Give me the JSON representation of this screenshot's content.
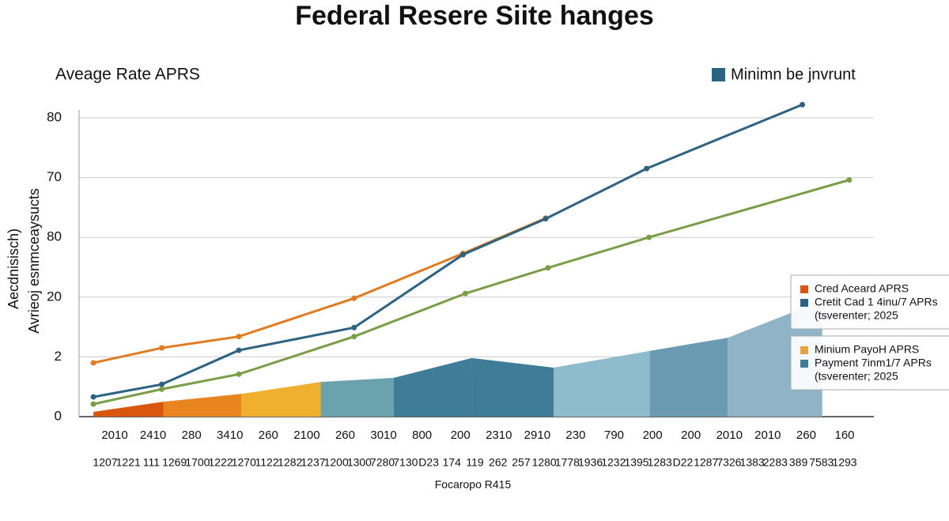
{
  "chart_data": {
    "type": "line",
    "title": "Federal Resere Siite hanges",
    "subtitle": "Aveage Rate APRS",
    "y_label": [
      "Aecdnisisch)",
      "Avrieoj esnmceaysucts"
    ],
    "x_label": "Focaropo R415",
    "x_labels_top": [
      "2010",
      "2410",
      "280",
      "3410",
      "260",
      "2100",
      "260",
      "3010",
      "800",
      "200",
      "2310",
      "2910",
      "230",
      "790",
      "200",
      "200",
      "2010",
      "2010",
      "260",
      "160"
    ],
    "x_labels_bottom": [
      "1207",
      "1221",
      "111",
      "1269",
      "1700",
      "1222",
      "1270",
      "1122",
      "1282",
      "1237",
      "1200",
      "1300",
      "7280",
      "7130",
      "D23",
      "174",
      "119",
      "262",
      "257",
      "1280",
      "1778",
      "1936",
      "1232",
      "1395",
      "1283",
      "D22",
      "1287",
      "7326",
      "1383",
      "2283",
      "389",
      "7583",
      "1293"
    ],
    "xlim": [
      0,
      100
    ],
    "ylim": [
      0,
      5
    ],
    "yticks": [
      {
        "value": 0,
        "label": "0"
      },
      {
        "value": 1,
        "label": "2"
      },
      {
        "value": 2,
        "label": "20"
      },
      {
        "value": 3,
        "label": "80"
      },
      {
        "value": 4,
        "label": "70"
      },
      {
        "value": 5,
        "label": "80"
      }
    ],
    "grid": true,
    "legend_top": {
      "label": "Minimn be jnvrunt",
      "color": "#2c6383"
    },
    "legend_boxes": [
      {
        "entries": [
          {
            "label": "Cred Aceard APRS",
            "color": "#d9560f"
          },
          {
            "label": "Cretit Cad 1 4inu/7 APRs",
            "color": "#2c6383"
          }
        ],
        "note": "(tsverenter; 2025"
      },
      {
        "entries": [
          {
            "label": "Minium PayoH APRS",
            "color": "#e8a33a"
          },
          {
            "label": "Payment 7inm1/7 APRs",
            "color": "#3e7c98"
          }
        ],
        "note": "(tsverenter; 2025"
      }
    ],
    "band": {
      "x": [
        1.8,
        10.6,
        20.4,
        30.4,
        39.6,
        49.4,
        59.7,
        71.8,
        81.6,
        93.5
      ],
      "values": [
        0.08,
        0.25,
        0.38,
        0.58,
        0.65,
        0.98,
        0.82,
        1.1,
        1.32,
        1.94
      ],
      "colors": [
        "#d9560f",
        "#e8851f",
        "#efb030",
        "#6aa3ad",
        "#3e7c98",
        "#3e7c98",
        "#8fbccd",
        "#6a9bb3",
        "#8fb3c7"
      ]
    },
    "series": [
      {
        "color": "#e07b22",
        "x": [
          1.8,
          10.4,
          20.1,
          34.6,
          48.3,
          58.7
        ],
        "values": [
          0.9,
          1.15,
          1.34,
          1.98,
          2.73,
          3.32
        ]
      },
      {
        "color": "#2c6383",
        "x": [
          1.8,
          10.4,
          20.1,
          34.6,
          48.3,
          58.7,
          71.4,
          91.0
        ],
        "values": [
          0.33,
          0.54,
          1.11,
          1.49,
          2.71,
          3.31,
          4.15,
          5.22
        ]
      },
      {
        "color": "#7a9e48",
        "x": [
          1.8,
          10.4,
          20.1,
          34.6,
          48.6,
          59.0,
          71.7,
          96.9
        ],
        "values": [
          0.21,
          0.46,
          0.71,
          1.34,
          2.06,
          2.49,
          3.0,
          3.96
        ]
      }
    ]
  }
}
